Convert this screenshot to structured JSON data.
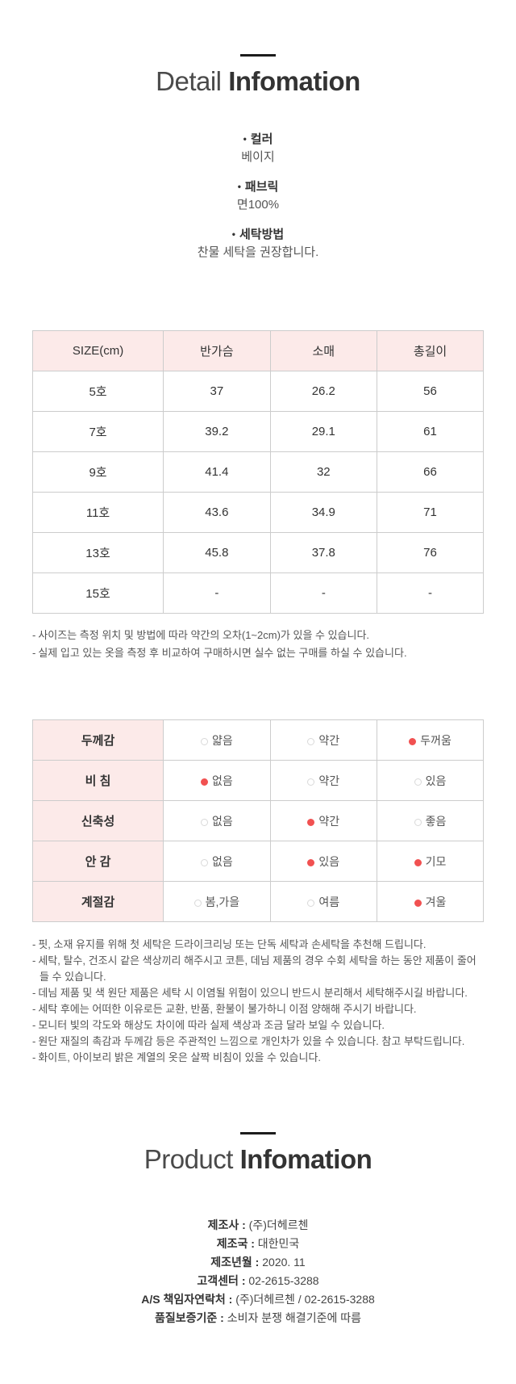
{
  "ui": {
    "bullet": "•",
    "dash": "-",
    "colon": " : "
  },
  "colors": {
    "table_header_pink": "#fceae9",
    "selected_dot_red": "#f15151",
    "table_border": "#cccccc",
    "heading_dark": "#333333",
    "body_text": "#555555"
  },
  "detail": {
    "title_light": "Detail",
    "title_bold": "Infomation",
    "specs": [
      {
        "label": "컬러",
        "value": "베이지"
      },
      {
        "label": "패브릭",
        "value": "면100%"
      },
      {
        "label": "세탁방법",
        "value": "찬물 세탁을 권장합니다."
      }
    ],
    "size_table": {
      "headers": [
        "SIZE(cm)",
        "반가슴",
        "소매",
        "총길이"
      ],
      "rows": [
        [
          "5호",
          "37",
          "26.2",
          "56"
        ],
        [
          "7호",
          "39.2",
          "29.1",
          "61"
        ],
        [
          "9호",
          "41.4",
          "32",
          "66"
        ],
        [
          "11호",
          "43.6",
          "34.9",
          "71"
        ],
        [
          "13호",
          "45.8",
          "37.8",
          "76"
        ],
        [
          "15호",
          "-",
          "-",
          "-"
        ]
      ]
    },
    "size_notes": [
      "사이즈는 측정 위치 및 방법에 따라 약간의 오차(1~2cm)가 있을 수 있습니다.",
      "실제 입고 있는 옷을 측정 후 비교하여 구매하시면 실수 없는 구매를 하실 수 있습니다."
    ],
    "attributes": [
      {
        "label": "두께감",
        "options": [
          {
            "text": "얇음",
            "selected": false
          },
          {
            "text": "약간",
            "selected": false
          },
          {
            "text": "두꺼움",
            "selected": true
          }
        ]
      },
      {
        "label": "비 침",
        "options": [
          {
            "text": "없음",
            "selected": true
          },
          {
            "text": "약간",
            "selected": false
          },
          {
            "text": "있음",
            "selected": false
          }
        ]
      },
      {
        "label": "신축성",
        "options": [
          {
            "text": "없음",
            "selected": false
          },
          {
            "text": "약간",
            "selected": true
          },
          {
            "text": "좋음",
            "selected": false
          }
        ]
      },
      {
        "label": "안 감",
        "options": [
          {
            "text": "없음",
            "selected": false
          },
          {
            "text": "있음",
            "selected": true
          },
          {
            "text": "기모",
            "selected": true
          }
        ]
      },
      {
        "label": "계절감",
        "options": [
          {
            "text": "봄,가을",
            "selected": false
          },
          {
            "text": "여름",
            "selected": false
          },
          {
            "text": "겨울",
            "selected": true
          }
        ]
      }
    ],
    "care_notes": [
      "핏, 소재 유지를 위해 첫 세탁은 드라이크리닝 또는 단독 세탁과 손세탁을 추천해 드립니다.",
      "세탁, 탈수, 건조시 같은 색상끼리 해주시고 코튼, 데님 제품의 경우 수회 세탁을 하는 동안 제품이 줄어들 수 있습니다.",
      "데님 제품 및 색 원단 제품은 세탁 시 이염될 위험이 있으니 반드시 분리해서 세탁해주시길 바랍니다.",
      "세탁 후에는 어떠한 이유로든 교환, 반품, 환불이 불가하니 이점 양해해 주시기 바랍니다.",
      "모니터 빛의 각도와 해상도 차이에 따라 실제 색상과 조금 달라 보일 수 있습니다.",
      "원단 재질의 촉감과 두께감 등은 주관적인 느낌으로 개인차가 있을 수 있습니다. 참고 부탁드립니다.",
      "화이트, 아이보리 밝은 계열의 옷은 살짝 비침이 있을 수 있습니다."
    ]
  },
  "product": {
    "title_light": "Product",
    "title_bold": "Infomation",
    "info": [
      {
        "label": "제조사",
        "value": "(주)더헤르첸"
      },
      {
        "label": "제조국",
        "value": "대한민국"
      },
      {
        "label": "제조년월",
        "value": "2020. 11"
      },
      {
        "label": "고객센터",
        "value": "02-2615-3288"
      },
      {
        "label": "A/S 책임자연락처",
        "value": "(주)더헤르첸 / 02-2615-3288"
      },
      {
        "label": "품질보증기준",
        "value": "소비자 분쟁 해결기준에 따름"
      }
    ]
  }
}
